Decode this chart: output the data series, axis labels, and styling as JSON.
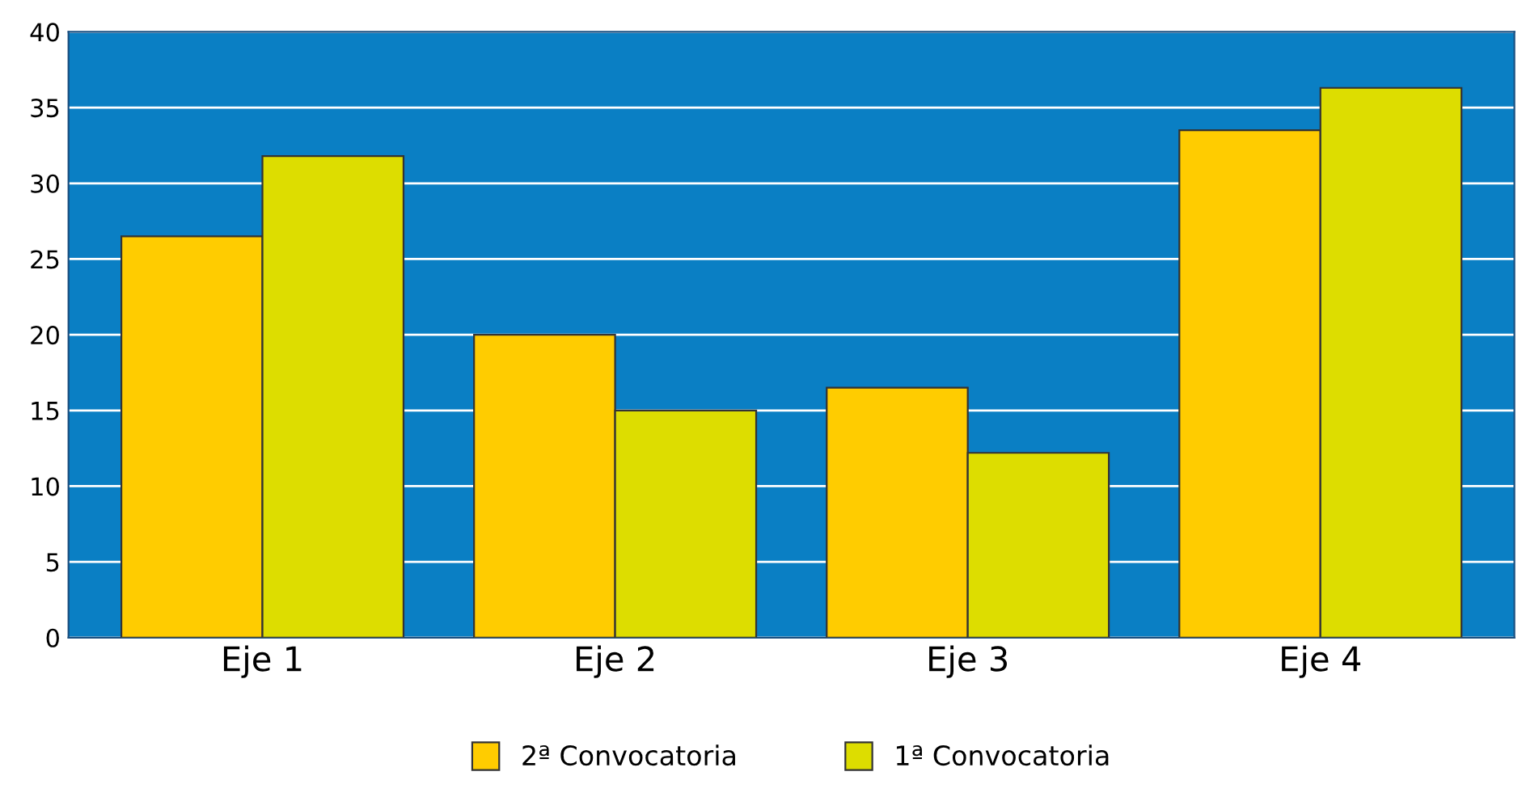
{
  "chart_data": {
    "type": "bar",
    "categories": [
      "Eje 1",
      "Eje 2",
      "Eje 3",
      "Eje 4"
    ],
    "series": [
      {
        "name": "2ª Convocatoria",
        "color": "#ffcc00",
        "values": [
          26.5,
          20,
          16.5,
          33.5
        ]
      },
      {
        "name": "1ª Convocatoria",
        "color": "#dddd00",
        "values": [
          31.8,
          15,
          12.2,
          36.3
        ]
      }
    ],
    "ylim": [
      0,
      40
    ],
    "yticks": [
      0,
      5,
      10,
      15,
      20,
      25,
      30,
      35,
      40
    ],
    "grid": "y",
    "legend": "bottom"
  }
}
